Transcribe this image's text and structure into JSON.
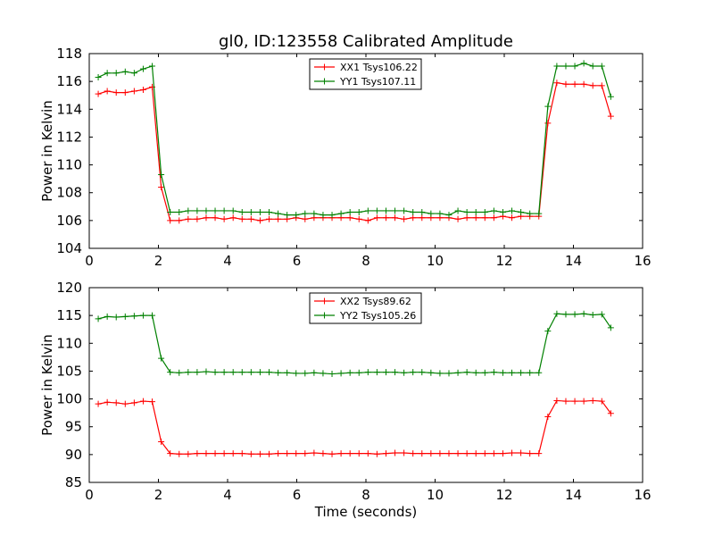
{
  "title": "gl0, ID:123558 Calibrated Amplitude",
  "chart_data": [
    {
      "type": "line",
      "title": "gl0, ID:123558 Calibrated Amplitude",
      "xlabel": "",
      "ylabel": "Power in Kelvin",
      "xlim": [
        0,
        16
      ],
      "ylim": [
        104,
        118
      ],
      "xticks": [
        0,
        2,
        4,
        6,
        8,
        10,
        12,
        14,
        16
      ],
      "yticks": [
        104,
        106,
        108,
        110,
        112,
        114,
        116,
        118
      ],
      "grid": false,
      "legend_position": "top-center",
      "x": [
        0.26,
        0.52,
        0.78,
        1.04,
        1.3,
        1.56,
        1.82,
        2.08,
        2.34,
        2.6,
        2.86,
        3.12,
        3.38,
        3.64,
        3.9,
        4.16,
        4.42,
        4.68,
        4.94,
        5.2,
        5.46,
        5.72,
        5.98,
        6.24,
        6.5,
        6.76,
        7.02,
        7.28,
        7.54,
        7.8,
        8.06,
        8.32,
        8.58,
        8.84,
        9.1,
        9.36,
        9.62,
        9.88,
        10.14,
        10.4,
        10.66,
        10.92,
        11.18,
        11.44,
        11.7,
        11.96,
        12.22,
        12.48,
        12.74,
        13.0,
        13.26,
        13.52,
        13.78,
        14.04,
        14.3,
        14.56,
        14.82,
        15.08
      ],
      "series": [
        {
          "name": "XX1 Tsys106.22",
          "color": "#ff0000",
          "values": [
            115.1,
            115.3,
            115.2,
            115.2,
            115.3,
            115.4,
            115.6,
            108.4,
            106.0,
            106.0,
            106.1,
            106.1,
            106.2,
            106.2,
            106.1,
            106.2,
            106.1,
            106.1,
            106.0,
            106.1,
            106.1,
            106.1,
            106.2,
            106.1,
            106.2,
            106.2,
            106.2,
            106.2,
            106.2,
            106.1,
            106.0,
            106.2,
            106.2,
            106.2,
            106.1,
            106.2,
            106.2,
            106.2,
            106.2,
            106.2,
            106.1,
            106.2,
            106.2,
            106.2,
            106.2,
            106.3,
            106.2,
            106.3,
            106.3,
            106.3,
            113.0,
            115.9,
            115.8,
            115.8,
            115.8,
            115.7,
            115.7,
            113.5
          ]
        },
        {
          "name": "YY1 Tsys107.11",
          "color": "#008000",
          "values": [
            116.3,
            116.6,
            116.6,
            116.7,
            116.6,
            116.9,
            117.1,
            109.3,
            106.6,
            106.6,
            106.7,
            106.7,
            106.7,
            106.7,
            106.7,
            106.7,
            106.6,
            106.6,
            106.6,
            106.6,
            106.5,
            106.4,
            106.4,
            106.5,
            106.5,
            106.4,
            106.4,
            106.5,
            106.6,
            106.6,
            106.7,
            106.7,
            106.7,
            106.7,
            106.7,
            106.6,
            106.6,
            106.5,
            106.5,
            106.4,
            106.7,
            106.6,
            106.6,
            106.6,
            106.7,
            106.6,
            106.7,
            106.6,
            106.5,
            106.5,
            114.2,
            117.1,
            117.1,
            117.1,
            117.3,
            117.1,
            117.1,
            114.9
          ]
        }
      ]
    },
    {
      "type": "line",
      "title": "",
      "xlabel": "Time (seconds)",
      "ylabel": "Power in Kelvin",
      "xlim": [
        0,
        16
      ],
      "ylim": [
        85,
        120
      ],
      "xticks": [
        0,
        2,
        4,
        6,
        8,
        10,
        12,
        14,
        16
      ],
      "yticks": [
        85,
        90,
        95,
        100,
        105,
        110,
        115,
        120
      ],
      "grid": false,
      "legend_position": "top-center",
      "x": [
        0.26,
        0.52,
        0.78,
        1.04,
        1.3,
        1.56,
        1.82,
        2.08,
        2.34,
        2.6,
        2.86,
        3.12,
        3.38,
        3.64,
        3.9,
        4.16,
        4.42,
        4.68,
        4.94,
        5.2,
        5.46,
        5.72,
        5.98,
        6.24,
        6.5,
        6.76,
        7.02,
        7.28,
        7.54,
        7.8,
        8.06,
        8.32,
        8.58,
        8.84,
        9.1,
        9.36,
        9.62,
        9.88,
        10.14,
        10.4,
        10.66,
        10.92,
        11.18,
        11.44,
        11.7,
        11.96,
        12.22,
        12.48,
        12.74,
        13.0,
        13.26,
        13.52,
        13.78,
        14.04,
        14.3,
        14.56,
        14.82,
        15.08
      ],
      "series": [
        {
          "name": "XX2 Tsys89.62",
          "color": "#ff0000",
          "values": [
            99.1,
            99.4,
            99.3,
            99.1,
            99.3,
            99.6,
            99.5,
            92.3,
            90.2,
            90.1,
            90.1,
            90.2,
            90.2,
            90.2,
            90.2,
            90.2,
            90.2,
            90.1,
            90.1,
            90.1,
            90.2,
            90.2,
            90.2,
            90.2,
            90.3,
            90.2,
            90.1,
            90.2,
            90.2,
            90.2,
            90.2,
            90.1,
            90.2,
            90.3,
            90.3,
            90.2,
            90.2,
            90.2,
            90.2,
            90.2,
            90.2,
            90.2,
            90.2,
            90.2,
            90.2,
            90.2,
            90.3,
            90.3,
            90.2,
            90.2,
            96.8,
            99.7,
            99.6,
            99.6,
            99.6,
            99.7,
            99.6,
            97.4
          ]
        },
        {
          "name": "YY2 Tsys105.26",
          "color": "#008000",
          "values": [
            114.4,
            114.8,
            114.7,
            114.8,
            114.9,
            115.0,
            115.0,
            107.3,
            104.8,
            104.7,
            104.8,
            104.8,
            104.9,
            104.8,
            104.8,
            104.8,
            104.8,
            104.8,
            104.8,
            104.8,
            104.7,
            104.7,
            104.6,
            104.6,
            104.7,
            104.6,
            104.5,
            104.6,
            104.7,
            104.7,
            104.8,
            104.8,
            104.8,
            104.8,
            104.7,
            104.8,
            104.8,
            104.7,
            104.6,
            104.6,
            104.7,
            104.8,
            104.7,
            104.7,
            104.8,
            104.7,
            104.7,
            104.7,
            104.7,
            104.7,
            112.2,
            115.3,
            115.2,
            115.2,
            115.3,
            115.1,
            115.2,
            112.8
          ]
        }
      ]
    }
  ]
}
